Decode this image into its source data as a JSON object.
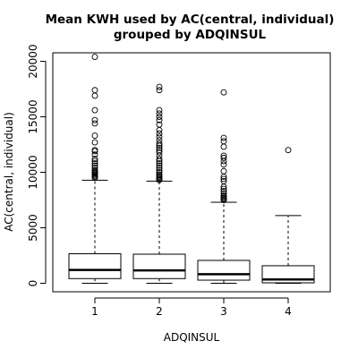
{
  "chart_data": {
    "type": "boxplot",
    "title_lines": [
      "Mean KWH used by AC(central, individual)",
      "grouped by ADQINSUL"
    ],
    "xlabel": "ADQINSUL",
    "ylabel": "AC(central, individual)",
    "categories": [
      "1",
      "2",
      "3",
      "4"
    ],
    "y_ticks": [
      0,
      5000,
      10000,
      15000,
      20000
    ],
    "ylim": [
      -800,
      21200
    ],
    "grid": false,
    "boxes": [
      {
        "category": "1",
        "whisker_low": 0,
        "q1": 420,
        "median": 1200,
        "q3": 2660,
        "whisker_high": 9280,
        "outliers": [
          9500,
          9600,
          9700,
          9800,
          9900,
          10000,
          10100,
          10200,
          10400,
          10600,
          10800,
          11000,
          11200,
          11600,
          11900,
          12000,
          12700,
          13300,
          14400,
          14700,
          15600,
          16900,
          17400,
          20400
        ]
      },
      {
        "category": "2",
        "whisker_low": 0,
        "q1": 420,
        "median": 1160,
        "q3": 2620,
        "whisker_high": 9200,
        "outliers": [
          9300,
          9400,
          9500,
          9600,
          9700,
          9800,
          10000,
          10200,
          10400,
          10600,
          10800,
          11000,
          11200,
          11500,
          11800,
          12000,
          12200,
          12400,
          12600,
          12900,
          13200,
          13500,
          13800,
          14300,
          14700,
          15000,
          15300,
          15600,
          17400,
          17700
        ]
      },
      {
        "category": "3",
        "whisker_low": 0,
        "q1": 280,
        "median": 820,
        "q3": 2060,
        "whisker_high": 7300,
        "outliers": [
          7500,
          7600,
          7700,
          7800,
          7900,
          8100,
          8300,
          8500,
          8700,
          9200,
          9400,
          9600,
          10100,
          10700,
          11000,
          11300,
          11500,
          12300,
          12800,
          13100,
          17200
        ]
      },
      {
        "category": "4",
        "whisker_low": 0,
        "q1": 40,
        "median": 340,
        "q3": 1580,
        "whisker_high": 6100,
        "outliers": [
          12000
        ]
      }
    ]
  }
}
